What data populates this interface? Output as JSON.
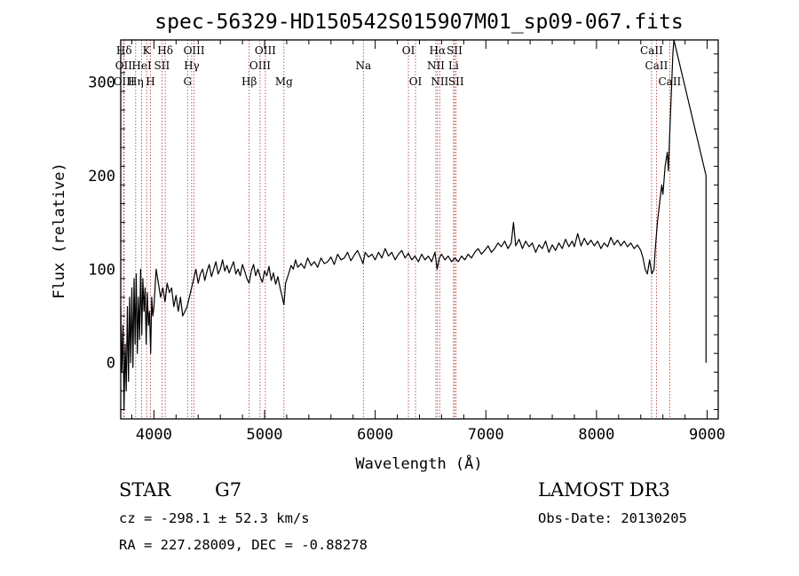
{
  "chart_data": {
    "type": "line",
    "title": "spec-56329-HD150542S015907M01_sp09-067.fits",
    "xlabel": "Wavelength (Å)",
    "ylabel": "Flux (relative)",
    "xlim": [
      3700,
      9100
    ],
    "ylim": [
      -60,
      345
    ],
    "xticks": [
      4000,
      5000,
      6000,
      7000,
      8000,
      9000
    ],
    "yticks": [
      0,
      100,
      200,
      300
    ],
    "spectral_lines": [
      {
        "label": "Hδ",
        "wave": 3730,
        "row": 0
      },
      {
        "label": "OII",
        "wave": 3727,
        "row": 1
      },
      {
        "label": "OIII",
        "wave": 3730,
        "row": 2
      },
      {
        "label": "K",
        "wave": 3934,
        "row": 0
      },
      {
        "label": "HeI",
        "wave": 3889,
        "row": 1
      },
      {
        "label": "Hη",
        "wave": 3835,
        "row": 2
      },
      {
        "label": "H",
        "wave": 3969,
        "row": 2
      },
      {
        "label": "Hδ",
        "wave": 4102,
        "row": 0
      },
      {
        "label": "SII",
        "wave": 4072,
        "row": 1
      },
      {
        "label": "OIII",
        "wave": 4363,
        "row": 0
      },
      {
        "label": "Hγ",
        "wave": 4341,
        "row": 1
      },
      {
        "label": "G",
        "wave": 4304,
        "row": 2
      },
      {
        "label": "Hβ",
        "wave": 4861,
        "row": 2
      },
      {
        "label": "OIII",
        "wave": 5007,
        "row": 0
      },
      {
        "label": "OIII",
        "wave": 4959,
        "row": 1
      },
      {
        "label": "Mg",
        "wave": 5175,
        "row": 2
      },
      {
        "label": "Na",
        "wave": 5893,
        "row": 1
      },
      {
        "label": "OI",
        "wave": 6300,
        "row": 0
      },
      {
        "label": "OI",
        "wave": 6364,
        "row": 2
      },
      {
        "label": "Hα",
        "wave": 6563,
        "row": 0
      },
      {
        "label": "NII",
        "wave": 6548,
        "row": 1
      },
      {
        "label": "NII",
        "wave": 6583,
        "row": 2
      },
      {
        "label": "SII",
        "wave": 6717,
        "row": 0
      },
      {
        "label": "Li",
        "wave": 6708,
        "row": 1
      },
      {
        "label": "SII",
        "wave": 6731,
        "row": 2
      },
      {
        "label": "CaII",
        "wave": 8498,
        "row": 0
      },
      {
        "label": "CaII",
        "wave": 8542,
        "row": 1
      },
      {
        "label": "CaII",
        "wave": 8662,
        "row": 2
      }
    ],
    "series": [
      {
        "name": "flux",
        "points": [
          [
            3700,
            60
          ],
          [
            3710,
            -10
          ],
          [
            3720,
            40
          ],
          [
            3730,
            -50
          ],
          [
            3740,
            20
          ],
          [
            3750,
            -30
          ],
          [
            3760,
            60
          ],
          [
            3770,
            -20
          ],
          [
            3780,
            70
          ],
          [
            3790,
            0
          ],
          [
            3800,
            80
          ],
          [
            3810,
            -5
          ],
          [
            3820,
            90
          ],
          [
            3830,
            20
          ],
          [
            3840,
            95
          ],
          [
            3850,
            10
          ],
          [
            3860,
            70
          ],
          [
            3870,
            25
          ],
          [
            3880,
            100
          ],
          [
            3890,
            30
          ],
          [
            3900,
            90
          ],
          [
            3910,
            55
          ],
          [
            3920,
            80
          ],
          [
            3930,
            20
          ],
          [
            3940,
            75
          ],
          [
            3950,
            40
          ],
          [
            3960,
            55
          ],
          [
            3970,
            10
          ],
          [
            3980,
            70
          ],
          [
            3990,
            50
          ],
          [
            4000,
            60
          ],
          [
            4020,
            100
          ],
          [
            4040,
            85
          ],
          [
            4060,
            70
          ],
          [
            4080,
            80
          ],
          [
            4100,
            65
          ],
          [
            4120,
            85
          ],
          [
            4140,
            75
          ],
          [
            4160,
            80
          ],
          [
            4180,
            60
          ],
          [
            4200,
            72
          ],
          [
            4220,
            55
          ],
          [
            4240,
            70
          ],
          [
            4260,
            50
          ],
          [
            4280,
            55
          ],
          [
            4300,
            60
          ],
          [
            4320,
            70
          ],
          [
            4340,
            80
          ],
          [
            4360,
            90
          ],
          [
            4380,
            100
          ],
          [
            4400,
            85
          ],
          [
            4420,
            95
          ],
          [
            4440,
            100
          ],
          [
            4460,
            88
          ],
          [
            4480,
            98
          ],
          [
            4500,
            105
          ],
          [
            4520,
            92
          ],
          [
            4540,
            100
          ],
          [
            4560,
            108
          ],
          [
            4580,
            95
          ],
          [
            4600,
            100
          ],
          [
            4620,
            110
          ],
          [
            4640,
            98
          ],
          [
            4660,
            104
          ],
          [
            4680,
            96
          ],
          [
            4700,
            102
          ],
          [
            4720,
            108
          ],
          [
            4740,
            95
          ],
          [
            4760,
            100
          ],
          [
            4780,
            93
          ],
          [
            4800,
            105
          ],
          [
            4820,
            98
          ],
          [
            4840,
            90
          ],
          [
            4860,
            85
          ],
          [
            4880,
            98
          ],
          [
            4900,
            105
          ],
          [
            4920,
            93
          ],
          [
            4940,
            100
          ],
          [
            4960,
            92
          ],
          [
            4980,
            86
          ],
          [
            5000,
            98
          ],
          [
            5020,
            93
          ],
          [
            5040,
            103
          ],
          [
            5060,
            88
          ],
          [
            5080,
            96
          ],
          [
            5100,
            84
          ],
          [
            5120,
            92
          ],
          [
            5140,
            80
          ],
          [
            5160,
            70
          ],
          [
            5175,
            62
          ],
          [
            5190,
            85
          ],
          [
            5220,
            96
          ],
          [
            5240,
            104
          ],
          [
            5260,
            100
          ],
          [
            5280,
            110
          ],
          [
            5300,
            102
          ],
          [
            5330,
            106
          ],
          [
            5360,
            101
          ],
          [
            5390,
            112
          ],
          [
            5420,
            104
          ],
          [
            5450,
            108
          ],
          [
            5480,
            102
          ],
          [
            5510,
            112
          ],
          [
            5540,
            106
          ],
          [
            5570,
            108
          ],
          [
            5600,
            113
          ],
          [
            5630,
            105
          ],
          [
            5660,
            116
          ],
          [
            5690,
            110
          ],
          [
            5720,
            112
          ],
          [
            5750,
            118
          ],
          [
            5780,
            109
          ],
          [
            5810,
            115
          ],
          [
            5840,
            120
          ],
          [
            5870,
            112
          ],
          [
            5890,
            106
          ],
          [
            5910,
            118
          ],
          [
            5940,
            113
          ],
          [
            5970,
            116
          ],
          [
            6000,
            110
          ],
          [
            6030,
            118
          ],
          [
            6060,
            112
          ],
          [
            6090,
            122
          ],
          [
            6120,
            114
          ],
          [
            6150,
            118
          ],
          [
            6180,
            110
          ],
          [
            6210,
            116
          ],
          [
            6240,
            120
          ],
          [
            6270,
            112
          ],
          [
            6300,
            117
          ],
          [
            6330,
            110
          ],
          [
            6360,
            114
          ],
          [
            6390,
            108
          ],
          [
            6420,
            116
          ],
          [
            6450,
            110
          ],
          [
            6480,
            114
          ],
          [
            6510,
            108
          ],
          [
            6540,
            118
          ],
          [
            6560,
            100
          ],
          [
            6580,
            112
          ],
          [
            6600,
            116
          ],
          [
            6630,
            110
          ],
          [
            6660,
            114
          ],
          [
            6690,
            108
          ],
          [
            6720,
            112
          ],
          [
            6750,
            108
          ],
          [
            6780,
            114
          ],
          [
            6810,
            110
          ],
          [
            6840,
            116
          ],
          [
            6870,
            112
          ],
          [
            6900,
            118
          ],
          [
            6930,
            122
          ],
          [
            6960,
            116
          ],
          [
            6990,
            120
          ],
          [
            7020,
            125
          ],
          [
            7050,
            118
          ],
          [
            7080,
            122
          ],
          [
            7110,
            128
          ],
          [
            7140,
            124
          ],
          [
            7170,
            130
          ],
          [
            7200,
            122
          ],
          [
            7230,
            128
          ],
          [
            7250,
            150
          ],
          [
            7270,
            125
          ],
          [
            7300,
            132
          ],
          [
            7330,
            122
          ],
          [
            7360,
            130
          ],
          [
            7390,
            124
          ],
          [
            7420,
            128
          ],
          [
            7450,
            118
          ],
          [
            7480,
            126
          ],
          [
            7510,
            122
          ],
          [
            7540,
            130
          ],
          [
            7570,
            118
          ],
          [
            7600,
            126
          ],
          [
            7630,
            120
          ],
          [
            7660,
            128
          ],
          [
            7690,
            122
          ],
          [
            7720,
            132
          ],
          [
            7750,
            124
          ],
          [
            7780,
            130
          ],
          [
            7800,
            124
          ],
          [
            7830,
            138
          ],
          [
            7860,
            125
          ],
          [
            7890,
            133
          ],
          [
            7920,
            126
          ],
          [
            7950,
            131
          ],
          [
            7980,
            125
          ],
          [
            8010,
            130
          ],
          [
            8040,
            122
          ],
          [
            8070,
            128
          ],
          [
            8100,
            124
          ],
          [
            8130,
            134
          ],
          [
            8160,
            126
          ],
          [
            8190,
            131
          ],
          [
            8220,
            125
          ],
          [
            8250,
            130
          ],
          [
            8280,
            124
          ],
          [
            8310,
            128
          ],
          [
            8340,
            122
          ],
          [
            8370,
            126
          ],
          [
            8400,
            120
          ],
          [
            8420,
            112
          ],
          [
            8440,
            100
          ],
          [
            8460,
            95
          ],
          [
            8480,
            110
          ],
          [
            8500,
            95
          ],
          [
            8520,
            100
          ],
          [
            8530,
            120
          ],
          [
            8550,
            150
          ],
          [
            8570,
            170
          ],
          [
            8590,
            190
          ],
          [
            8600,
            180
          ],
          [
            8620,
            210
          ],
          [
            8640,
            225
          ],
          [
            8650,
            205
          ],
          [
            8660,
            240
          ],
          [
            8670,
            270
          ],
          [
            8680,
            300
          ],
          [
            8690,
            330
          ],
          [
            8700,
            345
          ],
          [
            8990,
            200
          ],
          [
            8990,
            0
          ]
        ]
      }
    ],
    "grid": false
  },
  "info": {
    "object_class": "STAR",
    "subclass": "G7",
    "survey": "LAMOST DR3",
    "redshift_line": "cz = -298.1 ± 52.3 km/s",
    "obs_date_line": "Obs-Date: 20130205",
    "coords_line": "RA = 227.28009, DEC =  -0.88278"
  },
  "colors": {
    "line_marker": "#b03030",
    "spectrum": "#000000"
  }
}
